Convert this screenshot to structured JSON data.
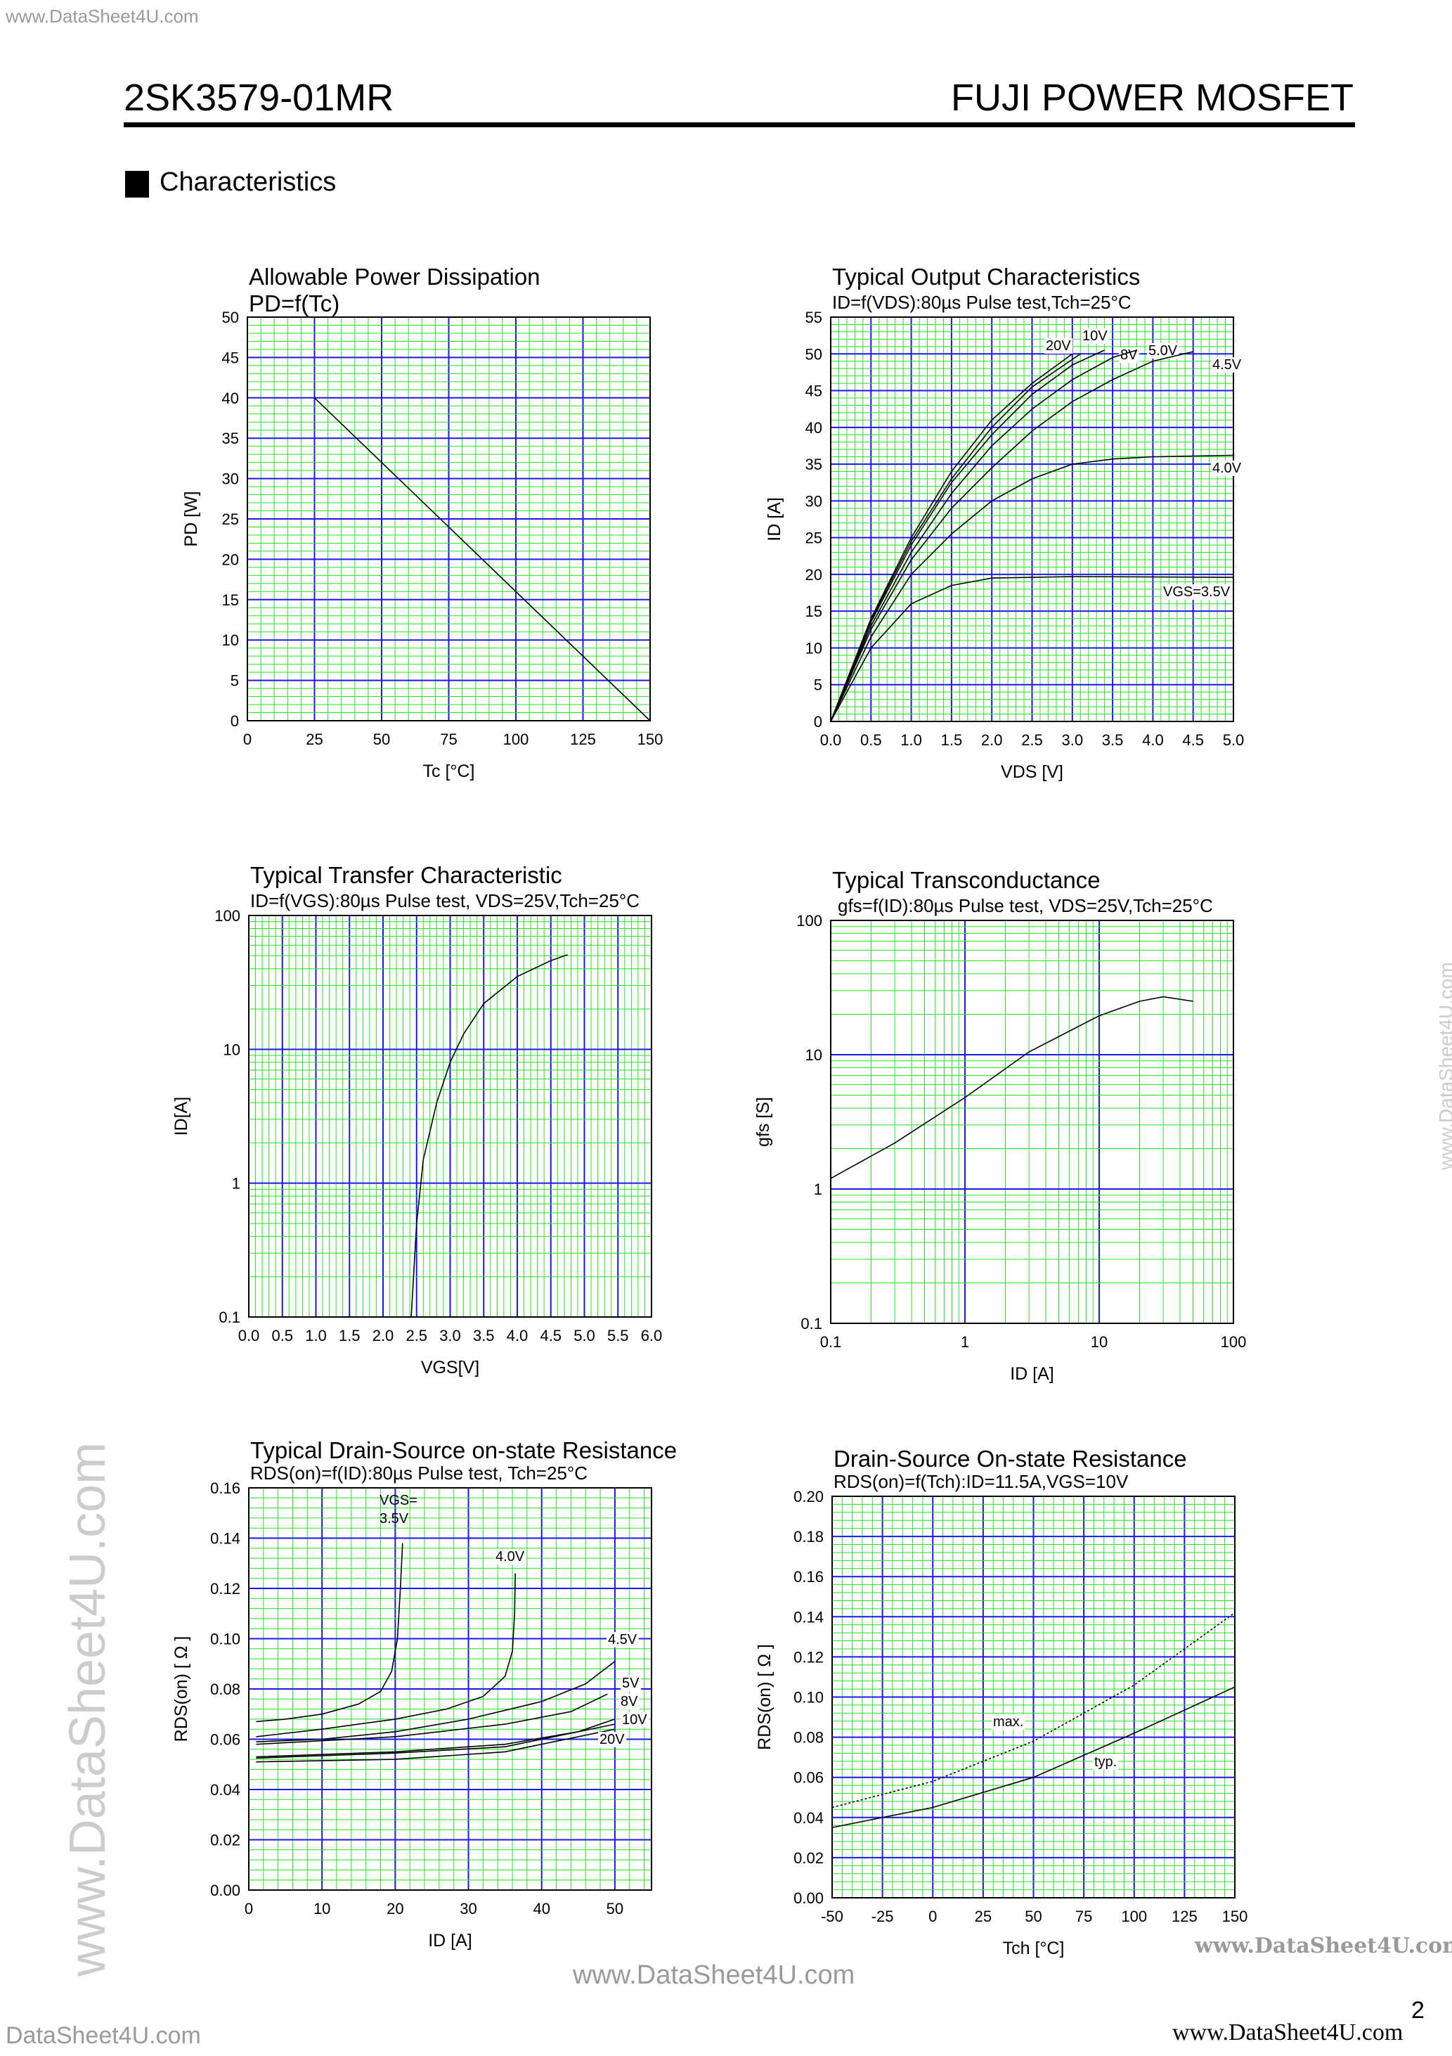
{
  "header": {
    "watermark_top": "www.DataSheet4U.com",
    "part_number": "2SK3579-01MR",
    "brand": "FUJI POWER MOSFET"
  },
  "section": {
    "title": "Characteristics"
  },
  "footer": {
    "watermark_center": "www.DataSheet4U.com",
    "watermark_right_mid": "www.DataSheet4U.com",
    "watermark_bottom_right": "www.DataSheet4U.com",
    "watermark_bottom_left": "DataSheet4U.com",
    "watermark_side_left": "www.DataSheet4U.com",
    "watermark_side_right": "www.DataSheet4U.com",
    "page_number": "2"
  },
  "colors": {
    "grid_minor": "#22e622",
    "grid_major": "#1a1ae6",
    "curve": "#000000"
  },
  "chart_data": [
    {
      "type": "line",
      "title": "Allowable Power Dissipation",
      "subtitle": "PD=f(Tc)",
      "xlabel": "Tc [°C]",
      "ylabel": "PD [W]",
      "xlim": [
        0,
        150
      ],
      "ylim": [
        0,
        50
      ],
      "xscale": "linear",
      "yscale": "linear",
      "grid": true,
      "xticks": [
        "0",
        "25",
        "50",
        "75",
        "100",
        "125",
        "150"
      ],
      "yticks": [
        "0",
        "5",
        "10",
        "15",
        "20",
        "25",
        "30",
        "35",
        "40",
        "45",
        "50"
      ],
      "series": [
        {
          "x": [
            25,
            150
          ],
          "y": [
            40,
            0
          ]
        }
      ]
    },
    {
      "type": "line",
      "title": "Typical Output Characteristics",
      "subtitle": "ID=f(VDS):80µs Pulse test,Tch=25°C",
      "xlabel": "VDS [V]",
      "ylabel": "ID [A]",
      "xlim": [
        0,
        5
      ],
      "ylim": [
        0,
        55
      ],
      "xscale": "linear",
      "yscale": "linear",
      "grid": true,
      "xticks": [
        "0.0",
        "0.5",
        "1.0",
        "1.5",
        "2.0",
        "2.5",
        "3.0",
        "3.5",
        "4.0",
        "4.5",
        "5.0"
      ],
      "yticks": [
        "0",
        "5",
        "10",
        "15",
        "20",
        "25",
        "30",
        "35",
        "40",
        "45",
        "50",
        "55"
      ],
      "series": [
        {
          "name": "20V",
          "x": [
            0,
            0.5,
            1,
            1.5,
            2,
            2.5,
            3.0
          ],
          "y": [
            0,
            14,
            25,
            34,
            41,
            46,
            50
          ]
        },
        {
          "name": "10V",
          "x": [
            0,
            0.5,
            1,
            1.5,
            2,
            2.5,
            3.1
          ],
          "y": [
            0,
            13.8,
            24.5,
            33,
            40,
            45.5,
            50
          ]
        },
        {
          "name": "8V",
          "x": [
            0,
            0.5,
            1,
            1.5,
            2,
            2.5,
            3.0,
            3.4
          ],
          "y": [
            0,
            13.5,
            24,
            32.5,
            39,
            44.5,
            48.5,
            50.5
          ]
        },
        {
          "name": "5.0V",
          "x": [
            0,
            0.5,
            1,
            1.5,
            2,
            2.5,
            3,
            3.5,
            3.8
          ],
          "y": [
            0,
            13,
            23,
            31,
            37.5,
            42.5,
            46.5,
            49.5,
            50.5
          ]
        },
        {
          "name": "4.5V",
          "x": [
            0,
            0.5,
            1,
            1.5,
            2,
            2.5,
            3,
            3.5,
            4,
            4.5
          ],
          "y": [
            0,
            12.5,
            22,
            29,
            34.5,
            39.5,
            43.5,
            46.5,
            49,
            50.3
          ]
        },
        {
          "name": "4.0V",
          "x": [
            0,
            0.5,
            1,
            1.5,
            2,
            2.5,
            3,
            3.5,
            4,
            5
          ],
          "y": [
            0,
            11.5,
            20,
            25.5,
            30,
            33,
            35,
            35.7,
            36,
            36.2
          ]
        },
        {
          "name": "VGS=3.5V",
          "x": [
            0,
            0.5,
            1,
            1.5,
            2,
            3,
            5
          ],
          "y": [
            0,
            10,
            16,
            18.5,
            19.5,
            19.7,
            19.6
          ]
        }
      ]
    },
    {
      "type": "line",
      "title": "Typical Transfer Characteristic",
      "subtitle": "ID=f(VGS):80µs Pulse test, VDS=25V,Tch=25°C",
      "xlabel": "VGS[V]",
      "ylabel": "ID[A]",
      "xlim": [
        0,
        6
      ],
      "ylim": [
        0.1,
        100
      ],
      "xscale": "linear",
      "yscale": "log",
      "grid": true,
      "xticks": [
        "0.0",
        "0.5",
        "1.0",
        "1.5",
        "2.0",
        "2.5",
        "3.0",
        "3.5",
        "4.0",
        "4.5",
        "5.0",
        "5.5",
        "6.0"
      ],
      "yticks": [
        "0.1",
        "1",
        "10",
        "100"
      ],
      "series": [
        {
          "x": [
            2.42,
            2.5,
            2.6,
            2.8,
            3.0,
            3.2,
            3.5,
            4.0,
            4.5,
            4.75
          ],
          "y": [
            0.1,
            0.5,
            1.5,
            4,
            8,
            13,
            22,
            35,
            46,
            51
          ]
        }
      ]
    },
    {
      "type": "line",
      "title": "Typical Transconductance",
      "subtitle": "gfs=f(ID):80µs Pulse test, VDS=25V,Tch=25°C",
      "xlabel": "ID [A]",
      "ylabel": "gfs [S]",
      "xlim": [
        0.1,
        100
      ],
      "ylim": [
        0.1,
        100
      ],
      "xscale": "log",
      "yscale": "log",
      "grid": true,
      "xticks": [
        "0.1",
        "1",
        "10",
        "100"
      ],
      "yticks": [
        "0.1",
        "1",
        "10",
        "100"
      ],
      "series": [
        {
          "x": [
            0.1,
            0.3,
            1,
            3,
            10,
            20,
            30,
            50
          ],
          "y": [
            1.2,
            2.2,
            4.8,
            10.5,
            19.5,
            25,
            27,
            25
          ]
        }
      ]
    },
    {
      "type": "line",
      "title": "Typical Drain-Source on-state Resistance",
      "subtitle": "RDS(on)=f(ID):80µs Pulse test, Tch=25°C",
      "xlabel": "ID [A]",
      "ylabel": "RDS(on) [ Ω ]",
      "xlim": [
        0,
        55
      ],
      "ylim": [
        0,
        0.16
      ],
      "xscale": "linear",
      "yscale": "linear",
      "grid": true,
      "xticks": [
        "0",
        "10",
        "20",
        "30",
        "40",
        "50"
      ],
      "yticks": [
        "0.00",
        "0.02",
        "0.04",
        "0.06",
        "0.08",
        "0.10",
        "0.12",
        "0.14",
        "0.16"
      ],
      "series": [
        {
          "name": "VGS= 3.5V",
          "x": [
            1,
            5,
            10,
            15,
            18,
            19.5,
            20.3,
            20.7,
            21
          ],
          "y": [
            0.067,
            0.068,
            0.07,
            0.074,
            0.079,
            0.087,
            0.1,
            0.12,
            0.138
          ]
        },
        {
          "name": "4.0V",
          "x": [
            1,
            10,
            20,
            27,
            32,
            35,
            36,
            36.3,
            36.4
          ],
          "y": [
            0.061,
            0.064,
            0.068,
            0.072,
            0.077,
            0.085,
            0.095,
            0.11,
            0.126
          ]
        },
        {
          "name": "4.5V",
          "x": [
            1,
            10,
            20,
            30,
            40,
            46,
            50
          ],
          "y": [
            0.059,
            0.06,
            0.063,
            0.068,
            0.075,
            0.082,
            0.091
          ]
        },
        {
          "name": "5V",
          "x": [
            1,
            20,
            35,
            44,
            49
          ],
          "y": [
            0.058,
            0.061,
            0.066,
            0.071,
            0.078
          ]
        },
        {
          "name": "8V",
          "x": [
            1,
            20,
            35,
            45,
            50
          ],
          "y": [
            0.053,
            0.055,
            0.058,
            0.063,
            0.068
          ]
        },
        {
          "name": "10V",
          "x": [
            1,
            20,
            35,
            50
          ],
          "y": [
            0.0525,
            0.0545,
            0.057,
            0.066
          ]
        },
        {
          "name": "20V",
          "x": [
            1,
            20,
            35,
            50
          ],
          "y": [
            0.051,
            0.052,
            0.055,
            0.064
          ]
        }
      ]
    },
    {
      "type": "line",
      "title": "Drain-Source On-state Resistance",
      "subtitle": "RDS(on)=f(Tch):ID=11.5A,VGS=10V",
      "xlabel": "Tch [°C]",
      "ylabel": "RDS(on) [ Ω ]",
      "xlim": [
        -50,
        150
      ],
      "ylim": [
        0,
        0.2
      ],
      "xscale": "linear",
      "yscale": "linear",
      "grid": true,
      "xticks": [
        "-50",
        "-25",
        "0",
        "25",
        "50",
        "75",
        "100",
        "125",
        "150"
      ],
      "yticks": [
        "0.00",
        "0.02",
        "0.04",
        "0.06",
        "0.08",
        "0.10",
        "0.12",
        "0.14",
        "0.16",
        "0.18",
        "0.20"
      ],
      "series": [
        {
          "name": "max.",
          "style": "dotted",
          "x": [
            -50,
            0,
            50,
            100,
            150
          ],
          "y": [
            0.045,
            0.058,
            0.078,
            0.106,
            0.142
          ]
        },
        {
          "name": "typ.",
          "x": [
            -50,
            0,
            50,
            100,
            150
          ],
          "y": [
            0.035,
            0.045,
            0.06,
            0.082,
            0.105
          ]
        }
      ]
    }
  ]
}
